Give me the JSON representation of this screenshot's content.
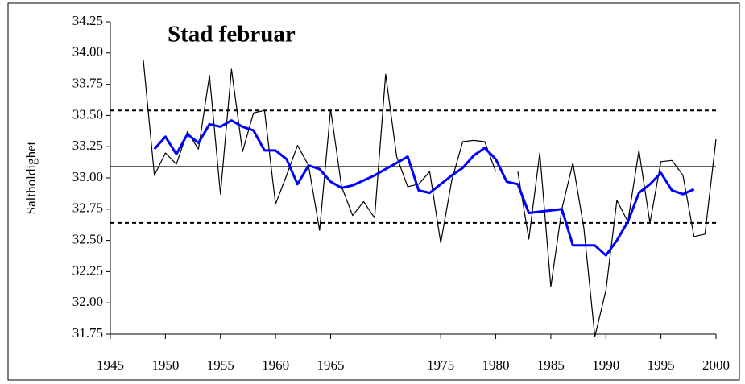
{
  "chart_data": {
    "type": "line",
    "title": "Stad februar",
    "y_label": "Saltholdighet",
    "x": [
      1948,
      1949,
      1950,
      1951,
      1952,
      1953,
      1954,
      1955,
      1956,
      1957,
      1958,
      1959,
      1960,
      1961,
      1962,
      1963,
      1964,
      1965,
      1966,
      1967,
      1968,
      1969,
      1970,
      1971,
      1972,
      1973,
      1974,
      1975,
      1976,
      1977,
      1978,
      1979,
      1980,
      1981,
      1982,
      1983,
      1984,
      1985,
      1986,
      1987,
      1988,
      1989,
      1990,
      1991,
      1992,
      1993,
      1994,
      1995,
      1996,
      1997,
      1998,
      1999,
      2000
    ],
    "series": [
      {
        "color": "#000000",
        "width": 1.2,
        "values": [
          33.94,
          33.02,
          33.2,
          33.11,
          33.37,
          33.23,
          33.82,
          32.87,
          33.87,
          33.21,
          33.52,
          33.54,
          32.79,
          33.02,
          33.26,
          33.1,
          32.58,
          33.55,
          32.93,
          32.7,
          32.81,
          32.68,
          33.83,
          33.17,
          32.93,
          32.95,
          33.05,
          32.48,
          32.98,
          33.29,
          33.3,
          33.29,
          33.05,
          null,
          33.05,
          32.51,
          33.2,
          32.13,
          32.75,
          33.12,
          32.6,
          31.73,
          32.1,
          32.82,
          32.65,
          33.22,
          32.64,
          33.13,
          33.14,
          33.02,
          32.53,
          32.55,
          33.31
        ]
      },
      {
        "color": "#0000ff",
        "width": 3,
        "values": [
          null,
          33.23,
          33.33,
          33.19,
          33.35,
          33.28,
          33.43,
          33.41,
          33.46,
          33.41,
          33.38,
          33.22,
          33.22,
          33.15,
          32.95,
          33.1,
          33.07,
          32.97,
          32.92,
          32.94,
          32.98,
          33.02,
          33.07,
          33.12,
          33.17,
          32.9,
          32.88,
          32.95,
          33.02,
          33.08,
          33.18,
          33.24,
          33.15,
          32.97,
          32.95,
          32.72,
          32.73,
          32.74,
          32.75,
          32.46,
          32.46,
          32.46,
          32.38,
          32.5,
          32.65,
          32.88,
          32.95,
          33.04,
          32.9,
          32.87,
          32.91,
          null,
          null
        ]
      }
    ],
    "reference_lines": [
      {
        "value": 33.09,
        "style": "solid"
      },
      {
        "value": 33.54,
        "style": "dashed"
      },
      {
        "value": 32.64,
        "style": "dashed"
      }
    ],
    "xlim": [
      1945,
      2000
    ],
    "xticks": [
      1945,
      1950,
      1955,
      1960,
      1965,
      1975,
      1980,
      1985,
      1990,
      1995,
      2000
    ],
    "ylim": [
      31.75,
      34.25
    ],
    "yticks": [
      31.75,
      {
        "value": 32,
        "label": "32.00"
      },
      32.25,
      {
        "value": 32.5,
        "label": "32.50"
      },
      32.75,
      {
        "value": 33,
        "label": "33.00"
      },
      33.25,
      {
        "value": 33.5,
        "label": "33.50"
      },
      33.75,
      {
        "value": 34,
        "label": "34.00"
      },
      34.25
    ]
  }
}
